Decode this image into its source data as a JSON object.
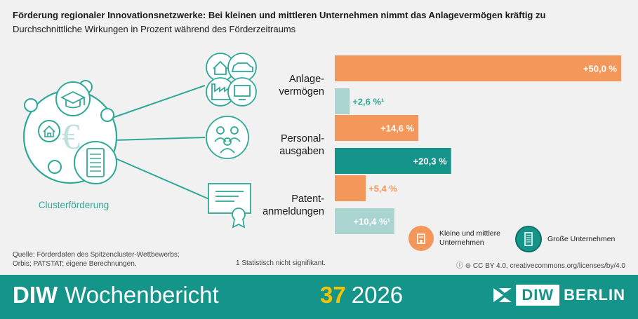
{
  "header": {
    "title": "Förderung regionaler Innovationsnetzwerke: Bei kleinen und mittleren Unternehmen nimmt das Anlagevermögen kräftig zu",
    "subtitle": "Durchschnittliche Wirkungen in Prozent während des Förderzeitraums"
  },
  "illustration": {
    "label": "Clusterförderung"
  },
  "colors": {
    "kmu": "#f4975a",
    "gross": "#15948a",
    "kmu_light": "#f4b286",
    "gross_light": "#a9d4cf",
    "teal": "#2ea898"
  },
  "chart_data": {
    "type": "bar",
    "orientation": "horizontal",
    "categories": [
      {
        "lines": [
          "Anlage-",
          "vermögen"
        ]
      },
      {
        "lines": [
          "Personal-",
          "ausgaben"
        ]
      },
      {
        "lines": [
          "Patent-",
          "anmeldungen"
        ]
      }
    ],
    "series": [
      {
        "name": "Kleine und mittlere Unternehmen",
        "values": [
          50.0,
          14.6,
          5.4
        ],
        "labels": [
          "+50,0 %",
          "+14,6 %",
          "+5,4 %"
        ],
        "significant": [
          true,
          true,
          true
        ]
      },
      {
        "name": "Große Unternehmen",
        "values": [
          2.6,
          20.3,
          10.4
        ],
        "labels": [
          "+2,6 %¹",
          "+20,3 %",
          "+10,4 %¹"
        ],
        "significant": [
          false,
          true,
          false
        ]
      }
    ],
    "xlim": [
      0,
      50
    ],
    "grid": false,
    "legend": "bottom-right"
  },
  "legend": {
    "kmu_line1": "Kleine und mittlere",
    "kmu_line2": "Unternehmen",
    "gross": "Große Unternehmen"
  },
  "footer": {
    "source_line1": "Quelle: Förderdaten des Spitzencluster-Wettbewerbs;",
    "source_line2": "Orbis; PATSTAT; eigene Berechnungen.",
    "footnote": "1  Statistisch nicht signifikant.",
    "license": "CC BY 4.0, creativecommons.org/licenses/by/4.0"
  },
  "banner": {
    "brand_bold": "DIW",
    "brand_rest": "Wochenbericht",
    "issue_number": "37",
    "year": "2026",
    "logo_diw": "DIW",
    "logo_berlin": "BERLIN"
  }
}
